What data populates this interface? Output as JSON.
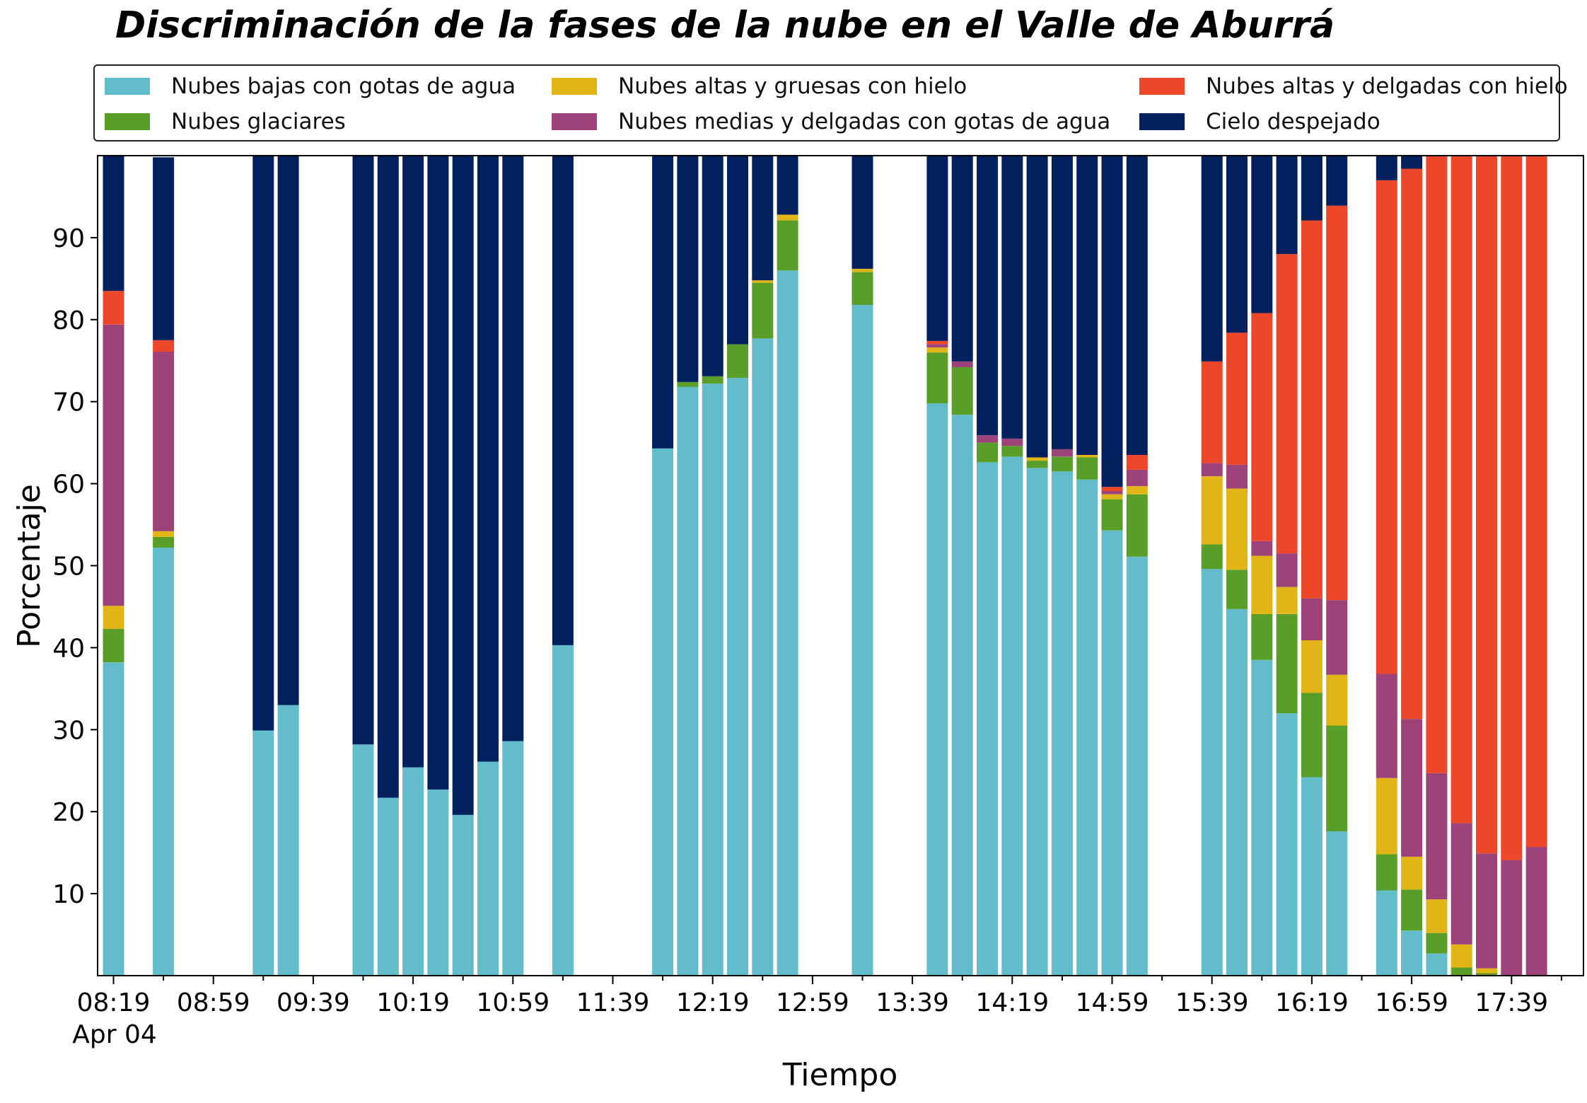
{
  "chart_data": {
    "type": "bar",
    "stacked": true,
    "title": "Discriminación de la fases de la nube en el Valle de Aburrá",
    "xlabel": "Tiempo",
    "ylabel": "Porcentaje",
    "ylim": [
      0,
      100
    ],
    "yticks": [
      10,
      20,
      30,
      40,
      50,
      60,
      70,
      80,
      90
    ],
    "grid": false,
    "legend_position": "top",
    "x_tick_labels": [
      "08:19",
      "08:59",
      "09:39",
      "10:19",
      "10:59",
      "11:39",
      "12:19",
      "12:59",
      "13:39",
      "14:19",
      "14:59",
      "15:39",
      "16:19",
      "16:59",
      "17:39"
    ],
    "x_date_label": "Apr 04",
    "x": [
      "08:19",
      "08:29",
      "08:39",
      "08:49",
      "08:59",
      "09:09",
      "09:19",
      "09:29",
      "09:39",
      "09:49",
      "09:59",
      "10:09",
      "10:19",
      "10:29",
      "10:39",
      "10:49",
      "10:59",
      "11:09",
      "11:19",
      "11:29",
      "11:39",
      "11:49",
      "11:59",
      "12:09",
      "12:19",
      "12:29",
      "12:39",
      "12:49",
      "12:59",
      "13:09",
      "13:19",
      "13:29",
      "13:39",
      "13:49",
      "13:59",
      "14:09",
      "14:19",
      "14:29",
      "14:39",
      "14:49",
      "14:59",
      "15:09",
      "15:19",
      "15:29",
      "15:39",
      "15:49",
      "15:59",
      "16:09",
      "16:19",
      "16:29",
      "16:39",
      "16:49",
      "16:59",
      "17:09",
      "17:19",
      "17:29",
      "17:39",
      "17:49"
    ],
    "series": [
      {
        "name": "Nubes bajas con gotas de agua",
        "color": "#63BCC9",
        "values": [
          38.2,
          null,
          52.2,
          null,
          null,
          null,
          29.9,
          33.0,
          null,
          null,
          28.2,
          21.7,
          25.4,
          22.7,
          19.6,
          26.1,
          28.6,
          null,
          40.3,
          null,
          null,
          null,
          64.3,
          71.8,
          72.2,
          72.9,
          77.7,
          86.0,
          null,
          null,
          81.8,
          null,
          null,
          69.8,
          68.4,
          62.6,
          63.3,
          61.9,
          61.5,
          60.5,
          54.3,
          51.1,
          null,
          null,
          49.6,
          44.7,
          38.5,
          32.0,
          24.2,
          17.6,
          null,
          10.4,
          5.5,
          2.7,
          0.0,
          0.0,
          0.0,
          0.0
        ]
      },
      {
        "name": "Nubes glaciares",
        "color": "#5A9E2A",
        "values": [
          4.1,
          null,
          1.3,
          null,
          null,
          null,
          0,
          0,
          null,
          null,
          0,
          0,
          0,
          0,
          0,
          0,
          0,
          null,
          0,
          null,
          null,
          null,
          0,
          0.6,
          0.9,
          4.1,
          6.8,
          6.1,
          null,
          null,
          4.0,
          null,
          null,
          6.2,
          5.8,
          2.4,
          1.3,
          0.9,
          1.8,
          2.7,
          3.8,
          7.6,
          null,
          null,
          3.0,
          4.8,
          5.6,
          12.1,
          10.3,
          12.9,
          null,
          4.4,
          5.0,
          2.5,
          1.0,
          0.3,
          0,
          0
        ]
      },
      {
        "name": "Nubes altas y gruesas con hielo",
        "color": "#E1B516",
        "values": [
          2.8,
          null,
          0.7,
          null,
          null,
          null,
          0,
          0,
          null,
          null,
          0,
          0,
          0,
          0,
          0,
          0,
          0,
          null,
          0,
          null,
          null,
          null,
          0,
          0,
          0,
          0,
          0.3,
          0.7,
          null,
          null,
          0.4,
          null,
          null,
          0.6,
          0,
          0,
          0,
          0.4,
          0,
          0.3,
          0.6,
          1.0,
          null,
          null,
          8.3,
          9.9,
          7.1,
          3.3,
          6.4,
          6.2,
          null,
          9.3,
          4.0,
          4.1,
          2.8,
          0.6,
          0,
          0
        ]
      },
      {
        "name": "Nubes medias y delgadas con gotas de agua",
        "color": "#9E4379",
        "values": [
          34.3,
          null,
          21.9,
          null,
          null,
          null,
          0,
          0,
          null,
          null,
          0,
          0,
          0,
          0,
          0,
          0,
          0,
          null,
          0,
          null,
          null,
          null,
          0,
          0,
          0,
          0,
          0,
          0,
          null,
          null,
          0,
          null,
          null,
          0.4,
          0.7,
          0.9,
          0.9,
          0,
          0.9,
          0,
          0.4,
          2.0,
          null,
          null,
          1.6,
          2.9,
          1.8,
          4.1,
          5.1,
          9.1,
          null,
          12.7,
          16.8,
          15.4,
          14.8,
          14.0,
          14.1,
          15.7
        ]
      },
      {
        "name": "Nubes altas y delgadas con hielo",
        "color": "#EE4628",
        "values": [
          4.1,
          null,
          1.4,
          null,
          null,
          null,
          0,
          0,
          null,
          null,
          0,
          0,
          0,
          0,
          0,
          0,
          0,
          null,
          0,
          null,
          null,
          null,
          0,
          0,
          0,
          0,
          0,
          0,
          null,
          null,
          0,
          null,
          null,
          0.4,
          0,
          0,
          0,
          0,
          0,
          0,
          0.5,
          1.8,
          null,
          null,
          12.4,
          16.1,
          27.8,
          36.5,
          46.1,
          48.1,
          null,
          60.2,
          67.1,
          75.3,
          81.4,
          85.1,
          85.9,
          84.3
        ]
      },
      {
        "name": "Cielo despejado",
        "color": "#03205E",
        "values": [
          16.5,
          null,
          22.3,
          null,
          null,
          null,
          70.1,
          67.0,
          null,
          null,
          71.8,
          78.3,
          74.6,
          77.3,
          80.4,
          73.9,
          71.4,
          null,
          59.7,
          null,
          null,
          null,
          35.7,
          27.6,
          26.9,
          23.0,
          15.2,
          7.2,
          null,
          null,
          13.8,
          null,
          null,
          22.6,
          25.1,
          34.1,
          34.5,
          36.8,
          35.8,
          36.5,
          40.4,
          36.5,
          null,
          null,
          25.1,
          21.6,
          19.2,
          12.0,
          7.9,
          6.2,
          null,
          3.0,
          1.6,
          0.0,
          0.0,
          0.0,
          0.0,
          0.0
        ]
      }
    ]
  }
}
